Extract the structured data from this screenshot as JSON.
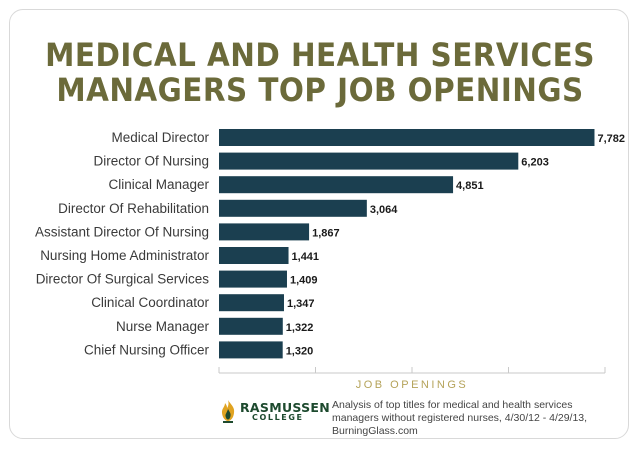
{
  "chart_data": {
    "type": "bar",
    "orientation": "horizontal",
    "title": "MEDICAL AND HEALTH SERVICES MANAGERS TOP JOB OPENINGS",
    "title_lines": [
      "MEDICAL AND HEALTH SERVICES",
      "MANAGERS TOP JOB OPENINGS"
    ],
    "xlabel": "JOB OPENINGS",
    "ylabel": "",
    "categories": [
      "Medical Director",
      "Director Of Nursing",
      "Clinical Manager",
      "Director Of Rehabilitation",
      "Assistant Director Of Nursing",
      "Nursing Home Administrator",
      "Director Of Surgical Services",
      "Clinical Coordinator",
      "Nurse Manager",
      "Chief Nursing Officer"
    ],
    "values": [
      7782,
      6203,
      4851,
      3064,
      1867,
      1441,
      1409,
      1347,
      1322,
      1320
    ],
    "value_labels": [
      "7,782",
      "6,203",
      "4,851",
      "3,064",
      "1,867",
      "1,441",
      "1,409",
      "1,347",
      "1,322",
      "1,320"
    ],
    "xlim": [
      0,
      8000
    ],
    "grid": false,
    "legend": "none",
    "bar_color": "#1b3f50",
    "title_color": "#6b6a3a",
    "xlabel_color": "#b5a35a"
  },
  "footer": {
    "logo_name": "RASMUSSEN",
    "logo_sub": "COLLEGE",
    "logo_icon": "flame-icon",
    "logo_color": "#1d4a2e",
    "source_note": "Analysis of top titles for medical and health services managers without registered nurses, 4/30/12 - 4/29/13, BurningGlass.com"
  }
}
